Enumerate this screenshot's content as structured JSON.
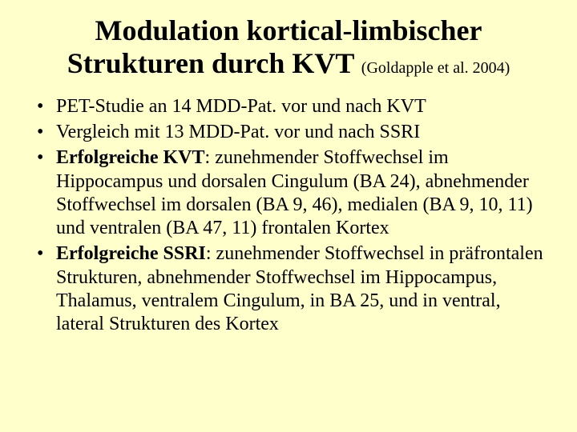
{
  "colors": {
    "background": "#ffffcc",
    "text": "#000000"
  },
  "typography": {
    "family": "Times New Roman",
    "title_fontsize_pt": 36,
    "citation_fontsize_pt": 20,
    "body_fontsize_pt": 24,
    "bullet_glyph": "•"
  },
  "title": {
    "line1": "Modulation kortical-limbischer",
    "line2_main": "Strukturen durch KVT ",
    "citation": "(Goldapple et al. 2004)"
  },
  "bullets": [
    {
      "prefix_bold": "",
      "text": "PET-Studie an 14 MDD-Pat. vor und nach KVT"
    },
    {
      "prefix_bold": "",
      "text": "Vergleich mit 13 MDD-Pat. vor und nach SSRI"
    },
    {
      "prefix_bold": "Erfolgreiche KVT",
      "text": ": zunehmender Stoffwechsel im Hippocampus und dorsalen Cingulum (BA 24), abnehmender Stoffwechsel im dorsalen (BA 9, 46), medialen (BA 9, 10, 11) und ventralen (BA 47, 11) frontalen Kortex"
    },
    {
      "prefix_bold": "Erfolgreiche SSRI",
      "text": ": zunehmender Stoffwechsel in präfrontalen Strukturen, abnehmender Stoffwechsel im Hippocampus, Thalamus, ventralem Cingulum, in BA 25, und in ventral, lateral Strukturen des Kortex"
    }
  ]
}
